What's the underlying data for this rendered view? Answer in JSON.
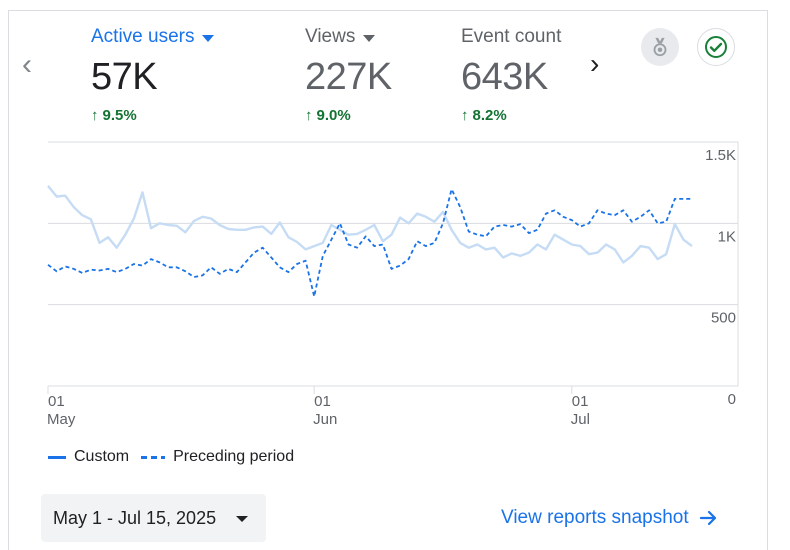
{
  "metrics": [
    {
      "label": "Active users",
      "value": "57K",
      "change": "9.5%",
      "active": true
    },
    {
      "label": "Views",
      "value": "227K",
      "change": "9.0%",
      "active": false
    },
    {
      "label": "Event count",
      "value": "643K",
      "change": "8.2%",
      "active": false
    }
  ],
  "icons": {
    "prev": "chevron-left-icon",
    "next": "chevron-right-icon",
    "badge": "medal-icon",
    "check": "check-circle-icon",
    "up": "arrow-up-icon",
    "link_arrow": "arrow-right-icon"
  },
  "colors": {
    "accent": "#1a73e8",
    "custom_line": "#c6dcf5",
    "preceding_line": "#1a73e8",
    "positive": "#137333",
    "check_green": "#188038"
  },
  "chart_data": {
    "type": "line",
    "y_ticks": [
      "0",
      "500",
      "1K",
      "1.5K"
    ],
    "ylim": [
      0,
      1500
    ],
    "x_ticks": [
      {
        "day": "01",
        "month": "May",
        "index": 0
      },
      {
        "day": "01",
        "month": "Jun",
        "index": 31
      },
      {
        "day": "01",
        "month": "Jul",
        "index": 61
      }
    ],
    "grid": true,
    "legend_placement": "bottom-left",
    "series": [
      {
        "name": "Custom",
        "style": "solid",
        "values": [
          1230,
          1165,
          1170,
          1100,
          1050,
          1025,
          880,
          915,
          850,
          930,
          1030,
          1190,
          970,
          1000,
          990,
          985,
          945,
          1015,
          1040,
          1030,
          990,
          965,
          960,
          960,
          975,
          980,
          935,
          1005,
          915,
          885,
          840,
          860,
          880,
          990,
          960,
          930,
          935,
          960,
          990,
          890,
          930,
          1035,
          1000,
          1060,
          1040,
          1010,
          1070,
          960,
          880,
          850,
          870,
          840,
          850,
          790,
          815,
          800,
          820,
          870,
          840,
          930,
          900,
          870,
          860,
          810,
          820,
          870,
          840,
          760,
          800,
          860,
          850,
          780,
          810,
          995,
          900,
          860
        ]
      },
      {
        "name": "Preceding period",
        "style": "dashed",
        "values": [
          745,
          705,
          735,
          720,
          695,
          715,
          710,
          720,
          700,
          720,
          750,
          740,
          780,
          760,
          730,
          730,
          705,
          670,
          680,
          730,
          690,
          720,
          700,
          760,
          820,
          850,
          790,
          730,
          700,
          750,
          770,
          550,
          800,
          900,
          1000,
          870,
          850,
          920,
          860,
          870,
          720,
          740,
          780,
          890,
          860,
          880,
          1000,
          1210,
          1100,
          950,
          930,
          920,
          980,
          990,
          980,
          995,
          940,
          960,
          1060,
          1080,
          1040,
          1020,
          980,
          1000,
          1080,
          1060,
          1050,
          1080,
          1010,
          1040,
          1080,
          1000,
          1010,
          1150,
          1150,
          1150
        ]
      }
    ]
  },
  "legend": {
    "custom": "Custom",
    "preceding": "Preceding period"
  },
  "date_range": "May 1 - Jul 15, 2025",
  "snapshot_link": "View reports snapshot"
}
